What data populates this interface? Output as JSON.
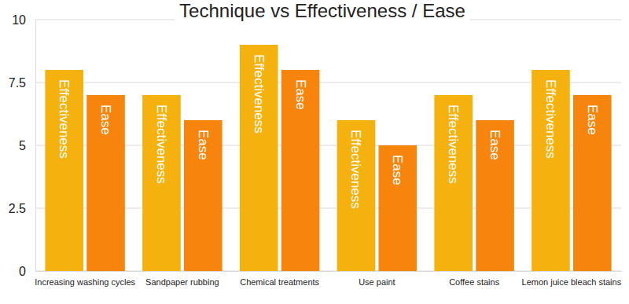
{
  "chart_data": {
    "type": "bar",
    "title": "Technique vs Effectiveness / Ease",
    "categories": [
      "Increasing washing cycles",
      "Sandpaper rubbing",
      "Chemical treatments",
      "Use paint",
      "Coffee stains",
      "Lemon juice bleach stains"
    ],
    "series": [
      {
        "name": "Effectiveness",
        "color": "#f5b20f",
        "values": [
          8,
          7,
          9,
          6,
          7,
          8
        ]
      },
      {
        "name": "Ease",
        "color": "#f7850d",
        "values": [
          7,
          6,
          8,
          5,
          6,
          7
        ]
      }
    ],
    "ylim": [
      0,
      10
    ],
    "yticks": [
      0,
      2.5,
      5,
      7.5,
      10
    ],
    "grid": true
  }
}
